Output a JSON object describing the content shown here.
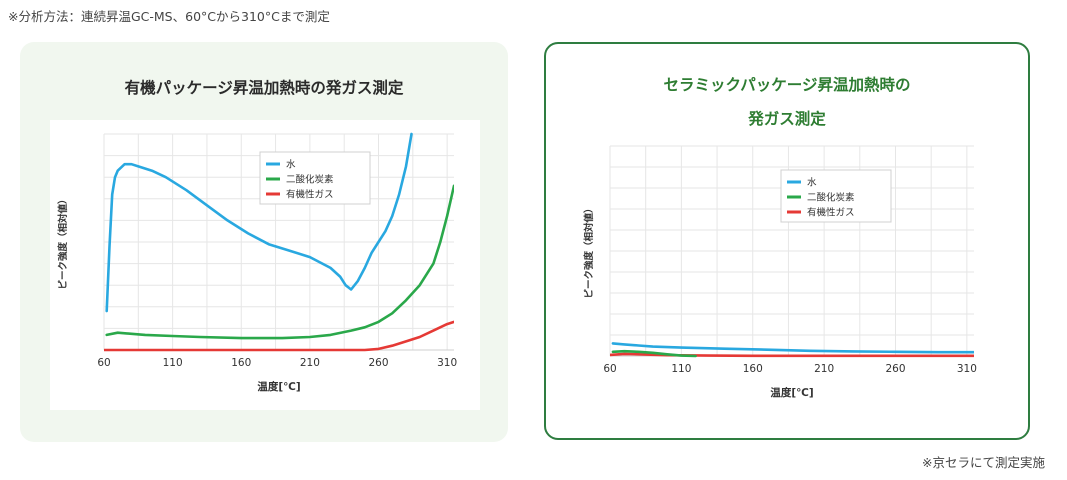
{
  "note_top": "※分析方法：連続昇温GC-MS、60°Cから310°Cまで測定",
  "note_bottom": "※京セラにて測定実施",
  "chart_data": [
    {
      "type": "line",
      "title": "有機パッケージ昇温加熱時の発ガス測定",
      "xlabel": "温度[℃]",
      "ylabel": "ピーク強度（相対値）",
      "xlim": [
        60,
        315
      ],
      "ylim": [
        0,
        100
      ],
      "xticks": [
        60,
        110,
        160,
        210,
        260,
        310
      ],
      "grid": true,
      "legend_position": "top-center",
      "series": [
        {
          "name": "水",
          "color": "#29a8e0",
          "x": [
            62,
            64,
            66,
            68,
            70,
            75,
            80,
            85,
            95,
            105,
            120,
            135,
            150,
            165,
            180,
            195,
            210,
            225,
            232,
            236,
            240,
            245,
            250,
            255,
            260,
            265,
            270,
            275,
            280,
            284
          ],
          "y": [
            18,
            48,
            72,
            80,
            83,
            86,
            86,
            85,
            83,
            80,
            74,
            67,
            60,
            54,
            49,
            46,
            43,
            38,
            34,
            30,
            28,
            32,
            38,
            45,
            50,
            55,
            62,
            72,
            85,
            100
          ]
        },
        {
          "name": "二酸化炭素",
          "color": "#2aa84a",
          "x": [
            62,
            70,
            90,
            110,
            130,
            160,
            190,
            210,
            225,
            240,
            250,
            260,
            270,
            280,
            290,
            300,
            305,
            310,
            315
          ],
          "y": [
            7,
            8,
            7,
            6.5,
            6,
            5.5,
            5.5,
            6,
            7,
            9,
            10.5,
            13,
            17,
            23,
            30,
            40,
            50,
            62,
            76
          ]
        },
        {
          "name": "有機性ガス",
          "color": "#e53935",
          "x": [
            60,
            250,
            260,
            270,
            280,
            290,
            300,
            310,
            315
          ],
          "y": [
            0,
            0,
            0.5,
            2,
            4,
            6,
            9,
            12,
            13
          ]
        }
      ]
    },
    {
      "type": "line",
      "title": "セラミックパッケージ昇温加熱時の発ガス測定",
      "title_lines": [
        "セラミックパッケージ昇温加熱時の",
        "発ガス測定"
      ],
      "xlabel": "温度[℃]",
      "ylabel": "ピーク強度（相対値）",
      "xlim": [
        60,
        315
      ],
      "ylim": [
        0,
        100
      ],
      "xticks": [
        60,
        110,
        160,
        210,
        260,
        310
      ],
      "grid": true,
      "legend_position": "top-center",
      "series": [
        {
          "name": "水",
          "color": "#29a8e0",
          "x": [
            62,
            70,
            80,
            90,
            110,
            140,
            170,
            200,
            230,
            260,
            290,
            315
          ],
          "y": [
            6,
            5.5,
            5,
            4.5,
            4,
            3.5,
            3,
            2.5,
            2.2,
            2,
            1.8,
            1.8
          ]
        },
        {
          "name": "二酸化炭素",
          "color": "#2aa84a",
          "x": [
            62,
            70,
            80,
            90,
            100,
            110,
            120
          ],
          "y": [
            2,
            2.3,
            2,
            1.5,
            0.8,
            0.2,
            0
          ]
        },
        {
          "name": "有機性ガス",
          "color": "#e53935",
          "x": [
            60,
            70,
            80,
            100,
            130,
            160,
            200,
            250,
            315
          ],
          "y": [
            0.5,
            1,
            0.8,
            0.4,
            0.2,
            0.1,
            0.1,
            0.1,
            0.1
          ]
        }
      ]
    }
  ]
}
